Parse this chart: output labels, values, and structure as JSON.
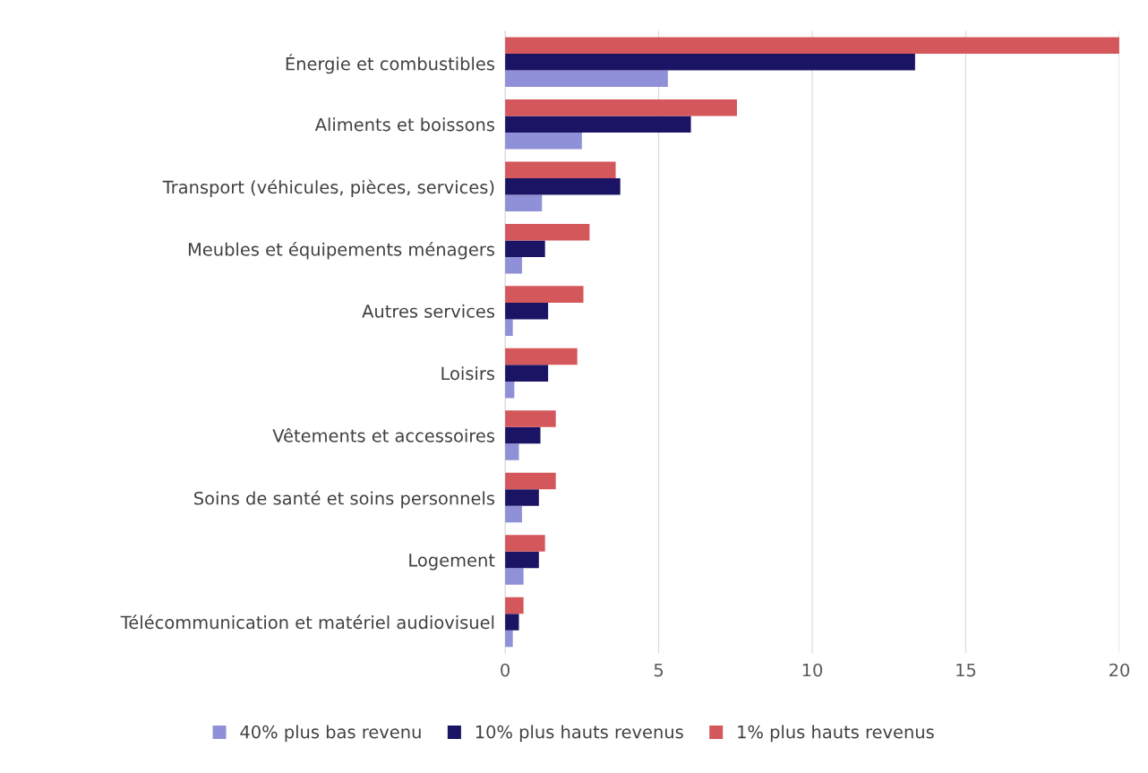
{
  "chart_data": {
    "type": "bar",
    "orientation": "horizontal",
    "categories": [
      "Énergie et combustibles",
      "Aliments et boissons",
      "Transport (véhicules, pièces, services)",
      "Meubles et équipements ménagers",
      "Autres services",
      "Loisirs",
      "Vêtements et accessoires",
      "Soins de santé et soins personnels",
      "Logement",
      "Télécommunication et matériel audiovisuel"
    ],
    "series": [
      {
        "name": "40% plus bas revenu",
        "color": "#9090d8",
        "values": [
          5.3,
          2.5,
          1.2,
          0.55,
          0.25,
          0.3,
          0.45,
          0.55,
          0.6,
          0.25
        ]
      },
      {
        "name": "10% plus hauts revenus",
        "color": "#1b1464",
        "values": [
          13.35,
          6.05,
          3.75,
          1.3,
          1.4,
          1.4,
          1.15,
          1.1,
          1.1,
          0.45
        ]
      },
      {
        "name": "1% plus hauts revenus",
        "color": "#d4575b",
        "values": [
          20.0,
          7.55,
          3.6,
          2.75,
          2.55,
          2.35,
          1.65,
          1.65,
          1.3,
          0.6
        ]
      }
    ],
    "xlim": [
      0,
      20
    ],
    "xticks": [
      0,
      5,
      10,
      15,
      20
    ],
    "grid": "x",
    "legend": "bottom"
  }
}
